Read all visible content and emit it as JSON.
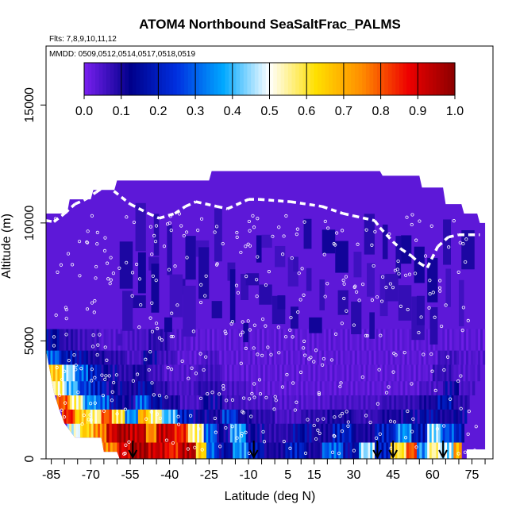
{
  "chart_data": {
    "type": "heatmap",
    "title": "ATOM4 Northbound SeaSaltFrac_PALMS",
    "flights_note": "Flts: 7,8,9,10,11,12",
    "dates_note": "MMDD: 0509,0512,0514,0517,0518,0519",
    "xlabel": "Latitude (deg N)",
    "ylabel": "Altitude (m)",
    "xlim": [
      -87,
      83
    ],
    "ylim": [
      0,
      17500
    ],
    "x_ticks": [
      -85,
      -70,
      -55,
      -40,
      -25,
      -10,
      5,
      15,
      30,
      45,
      60,
      75
    ],
    "x_minor_ticks": [
      -80,
      -75,
      -65,
      -60,
      -50,
      -45,
      -35,
      -30,
      -20,
      -15,
      -5,
      0,
      10,
      20,
      25,
      35,
      40,
      50,
      55,
      65,
      70,
      80
    ],
    "y_ticks": [
      0,
      5000,
      10000,
      15000
    ],
    "colorbar": {
      "min": 0.0,
      "max": 1.0,
      "tick_labels": [
        "0.0",
        "0.1",
        "0.2",
        "0.3",
        "0.4",
        "0.5",
        "0.6",
        "0.7",
        "0.8",
        "0.9",
        "1.0"
      ],
      "colors": [
        "#7a20f0",
        "#00008b",
        "#0030e0",
        "#00a8ff",
        "#ffffff",
        "#ffe000",
        "#ff8c00",
        "#ee0000",
        "#8b0000"
      ]
    },
    "background_value": 0.03,
    "layers": [
      {
        "alt": [
          0,
          700
        ],
        "segments": [
          [
            -66,
            -60,
            0.75
          ],
          [
            -60,
            -55,
            0.9
          ],
          [
            -55,
            -49,
            0.98
          ],
          [
            -49,
            -41,
            0.92
          ],
          [
            -41,
            -36,
            0.85
          ],
          [
            -36,
            -30,
            0.95
          ],
          [
            -30,
            -26,
            0.65
          ],
          [
            -26,
            -22,
            0.3
          ],
          [
            -22,
            -16,
            0.15
          ],
          [
            -16,
            -10,
            0.35
          ],
          [
            -10,
            -4,
            0.18
          ],
          [
            -4,
            4,
            0.1
          ],
          [
            4,
            12,
            0.2
          ],
          [
            12,
            18,
            0.1
          ],
          [
            18,
            26,
            0.3
          ],
          [
            26,
            32,
            0.15
          ],
          [
            32,
            38,
            0.45
          ],
          [
            38,
            44,
            0.2
          ],
          [
            44,
            50,
            0.6
          ],
          [
            50,
            54,
            0.8
          ],
          [
            54,
            58,
            0.35
          ],
          [
            58,
            63,
            0.55
          ],
          [
            63,
            68,
            0.45
          ],
          [
            68,
            71,
            0.7
          ]
        ]
      },
      {
        "alt": [
          700,
          1500
        ],
        "segments": [
          [
            -79,
            -74,
            0.5
          ],
          [
            -74,
            -69,
            0.65
          ],
          [
            -69,
            -64,
            0.75
          ],
          [
            -64,
            -60,
            0.9
          ],
          [
            -60,
            -55,
            0.97
          ],
          [
            -55,
            -49,
            0.93
          ],
          [
            -49,
            -45,
            0.75
          ],
          [
            -45,
            -39,
            0.93
          ],
          [
            -39,
            -33,
            0.85
          ],
          [
            -33,
            -27,
            0.55
          ],
          [
            -27,
            -22,
            0.3
          ],
          [
            -22,
            -17,
            0.12
          ],
          [
            -17,
            -11,
            0.38
          ],
          [
            -11,
            -4,
            0.12
          ],
          [
            -4,
            6,
            0.08
          ],
          [
            6,
            14,
            0.15
          ],
          [
            14,
            22,
            0.1
          ],
          [
            22,
            30,
            0.2
          ],
          [
            30,
            38,
            0.1
          ],
          [
            38,
            46,
            0.2
          ],
          [
            46,
            52,
            0.35
          ],
          [
            52,
            58,
            0.18
          ],
          [
            58,
            63,
            0.45
          ],
          [
            63,
            69,
            0.28
          ],
          [
            69,
            72,
            0.2
          ]
        ]
      },
      {
        "alt": [
          1500,
          2100
        ],
        "segments": [
          [
            -81,
            -76,
            0.85
          ],
          [
            -76,
            -71,
            0.65
          ],
          [
            -71,
            -66,
            0.55
          ],
          [
            -66,
            -62,
            0.8
          ],
          [
            -62,
            -57,
            0.6
          ],
          [
            -57,
            -52,
            0.35
          ],
          [
            -52,
            -48,
            0.7
          ],
          [
            -48,
            -43,
            0.55
          ],
          [
            -43,
            -37,
            0.4
          ],
          [
            -37,
            -31,
            0.2
          ],
          [
            -31,
            -25,
            0.12
          ],
          [
            -25,
            -20,
            0.1
          ],
          [
            -20,
            -14,
            0.25
          ],
          [
            -14,
            -8,
            0.1
          ],
          [
            -8,
            0,
            0.08
          ],
          [
            0,
            10,
            0.05
          ],
          [
            10,
            20,
            0.08
          ],
          [
            20,
            30,
            0.1
          ],
          [
            30,
            40,
            0.07
          ],
          [
            40,
            48,
            0.1
          ],
          [
            48,
            56,
            0.12
          ],
          [
            56,
            62,
            0.15
          ],
          [
            62,
            68,
            0.1
          ],
          [
            68,
            73,
            0.12
          ]
        ]
      },
      {
        "alt": [
          2100,
          2700
        ],
        "segments": [
          [
            -83,
            -78,
            0.8
          ],
          [
            -78,
            -73,
            0.55
          ],
          [
            -73,
            -68,
            0.35
          ],
          [
            -68,
            -63,
            0.3
          ],
          [
            -63,
            -58,
            0.15
          ],
          [
            -58,
            -53,
            0.12
          ],
          [
            -53,
            -48,
            0.3
          ],
          [
            -48,
            -42,
            0.15
          ],
          [
            -42,
            -36,
            0.1
          ],
          [
            -36,
            -28,
            0.05
          ],
          [
            -28,
            -20,
            0.12
          ],
          [
            -20,
            -12,
            0.06
          ],
          [
            -12,
            0,
            0.05
          ],
          [
            0,
            20,
            0.04
          ],
          [
            20,
            40,
            0.05
          ],
          [
            40,
            55,
            0.07
          ],
          [
            55,
            62,
            0.1
          ],
          [
            62,
            68,
            0.18
          ],
          [
            68,
            74,
            0.08
          ]
        ]
      },
      {
        "alt": [
          2700,
          3300
        ],
        "segments": [
          [
            -85,
            -80,
            0.55
          ],
          [
            -80,
            -75,
            0.4
          ],
          [
            -75,
            -70,
            0.25
          ],
          [
            -70,
            -64,
            0.2
          ],
          [
            -64,
            -58,
            0.12
          ],
          [
            -58,
            -52,
            0.1
          ],
          [
            -52,
            -46,
            0.15
          ],
          [
            -46,
            -40,
            0.08
          ],
          [
            -40,
            -30,
            0.05
          ],
          [
            -30,
            -20,
            0.08
          ],
          [
            -20,
            -10,
            0.05
          ],
          [
            -10,
            55,
            0.03
          ],
          [
            55,
            64,
            0.05
          ],
          [
            64,
            70,
            0.12
          ],
          [
            70,
            76,
            0.05
          ]
        ]
      },
      {
        "alt": [
          3300,
          4000
        ],
        "segments": [
          [
            -86,
            -81,
            0.65
          ],
          [
            -81,
            -76,
            0.45
          ],
          [
            -76,
            -71,
            0.3
          ],
          [
            -71,
            -66,
            0.2
          ],
          [
            -66,
            -60,
            0.12
          ],
          [
            -60,
            -54,
            0.08
          ],
          [
            -54,
            -48,
            0.1
          ],
          [
            -48,
            -42,
            0.06
          ],
          [
            -42,
            -30,
            0.04
          ],
          [
            -30,
            -20,
            0.06
          ],
          [
            -20,
            60,
            0.03
          ],
          [
            60,
            68,
            0.07
          ],
          [
            68,
            78,
            0.04
          ]
        ]
      },
      {
        "alt": [
          4000,
          4600
        ],
        "segments": [
          [
            -87,
            -82,
            0.3
          ],
          [
            -82,
            -77,
            0.18
          ],
          [
            -77,
            -71,
            0.15
          ],
          [
            -71,
            -64,
            0.1
          ],
          [
            -64,
            -57,
            0.08
          ],
          [
            -57,
            -50,
            0.05
          ],
          [
            -50,
            -44,
            0.12
          ],
          [
            -44,
            -37,
            0.06
          ],
          [
            -37,
            -28,
            0.03
          ],
          [
            -28,
            -22,
            0.05
          ],
          [
            -22,
            62,
            0.03
          ],
          [
            62,
            70,
            0.06
          ],
          [
            70,
            80,
            0.04
          ]
        ]
      },
      {
        "alt": [
          4600,
          5500
        ],
        "segments": [
          [
            -87,
            -82,
            0.14
          ],
          [
            -82,
            -75,
            0.08
          ],
          [
            -75,
            -66,
            0.06
          ],
          [
            -66,
            -56,
            0.04
          ],
          [
            -56,
            -48,
            0.05
          ],
          [
            -48,
            -40,
            0.08
          ],
          [
            -40,
            -32,
            0.04
          ],
          [
            -32,
            80,
            0.03
          ]
        ]
      }
    ],
    "outline_top": [
      [
        -87,
        10400
      ],
      [
        -79,
        10400
      ],
      [
        -78,
        11000
      ],
      [
        -70,
        11000
      ],
      [
        -69,
        11400
      ],
      [
        -61,
        11400
      ],
      [
        -60,
        11800
      ],
      [
        -25,
        11800
      ],
      [
        -24,
        12200
      ],
      [
        30,
        12200
      ],
      [
        31,
        12200
      ],
      [
        40,
        12200
      ],
      [
        41,
        12000
      ],
      [
        55,
        12000
      ],
      [
        56,
        11500
      ],
      [
        64,
        11500
      ],
      [
        65,
        10800
      ],
      [
        71,
        10800
      ],
      [
        72,
        10400
      ],
      [
        77,
        10400
      ],
      [
        78,
        10000
      ],
      [
        80,
        10000
      ]
    ],
    "outline_bottom": [
      [
        -87,
        4600
      ],
      [
        -84,
        2800
      ],
      [
        -82,
        2100
      ],
      [
        -80,
        1500
      ],
      [
        -76,
        900
      ],
      [
        -66,
        900
      ],
      [
        -65,
        300
      ],
      [
        -60,
        300
      ],
      [
        -59,
        0
      ],
      [
        73,
        0
      ],
      [
        73,
        400
      ],
      [
        80,
        400
      ],
      [
        80,
        10000
      ]
    ],
    "flight_track": [
      [
        -87,
        10100
      ],
      [
        -84,
        10050
      ],
      [
        -80,
        10400
      ],
      [
        -76,
        10800
      ],
      [
        -72,
        11000
      ],
      [
        -68,
        11300
      ],
      [
        -64,
        11600
      ],
      [
        -55,
        10800
      ],
      [
        -48,
        10400
      ],
      [
        -44,
        10200
      ],
      [
        -38,
        10400
      ],
      [
        -34,
        10700
      ],
      [
        -30,
        10900
      ],
      [
        -22,
        10700
      ],
      [
        -18,
        10600
      ],
      [
        -10,
        11000
      ],
      [
        -6,
        11000
      ],
      [
        6,
        10900
      ],
      [
        18,
        10700
      ],
      [
        26,
        10400
      ],
      [
        30,
        10300
      ],
      [
        38,
        10100
      ],
      [
        40,
        9800
      ],
      [
        45,
        9200
      ],
      [
        48,
        8900
      ],
      [
        52,
        8600
      ],
      [
        55,
        8300
      ],
      [
        58,
        8100
      ],
      [
        62,
        9000
      ],
      [
        66,
        9400
      ],
      [
        70,
        9500
      ],
      [
        74,
        9500
      ],
      [
        78,
        9500
      ]
    ],
    "arrows_lat": [
      -54,
      -8,
      39,
      45,
      64
    ]
  }
}
